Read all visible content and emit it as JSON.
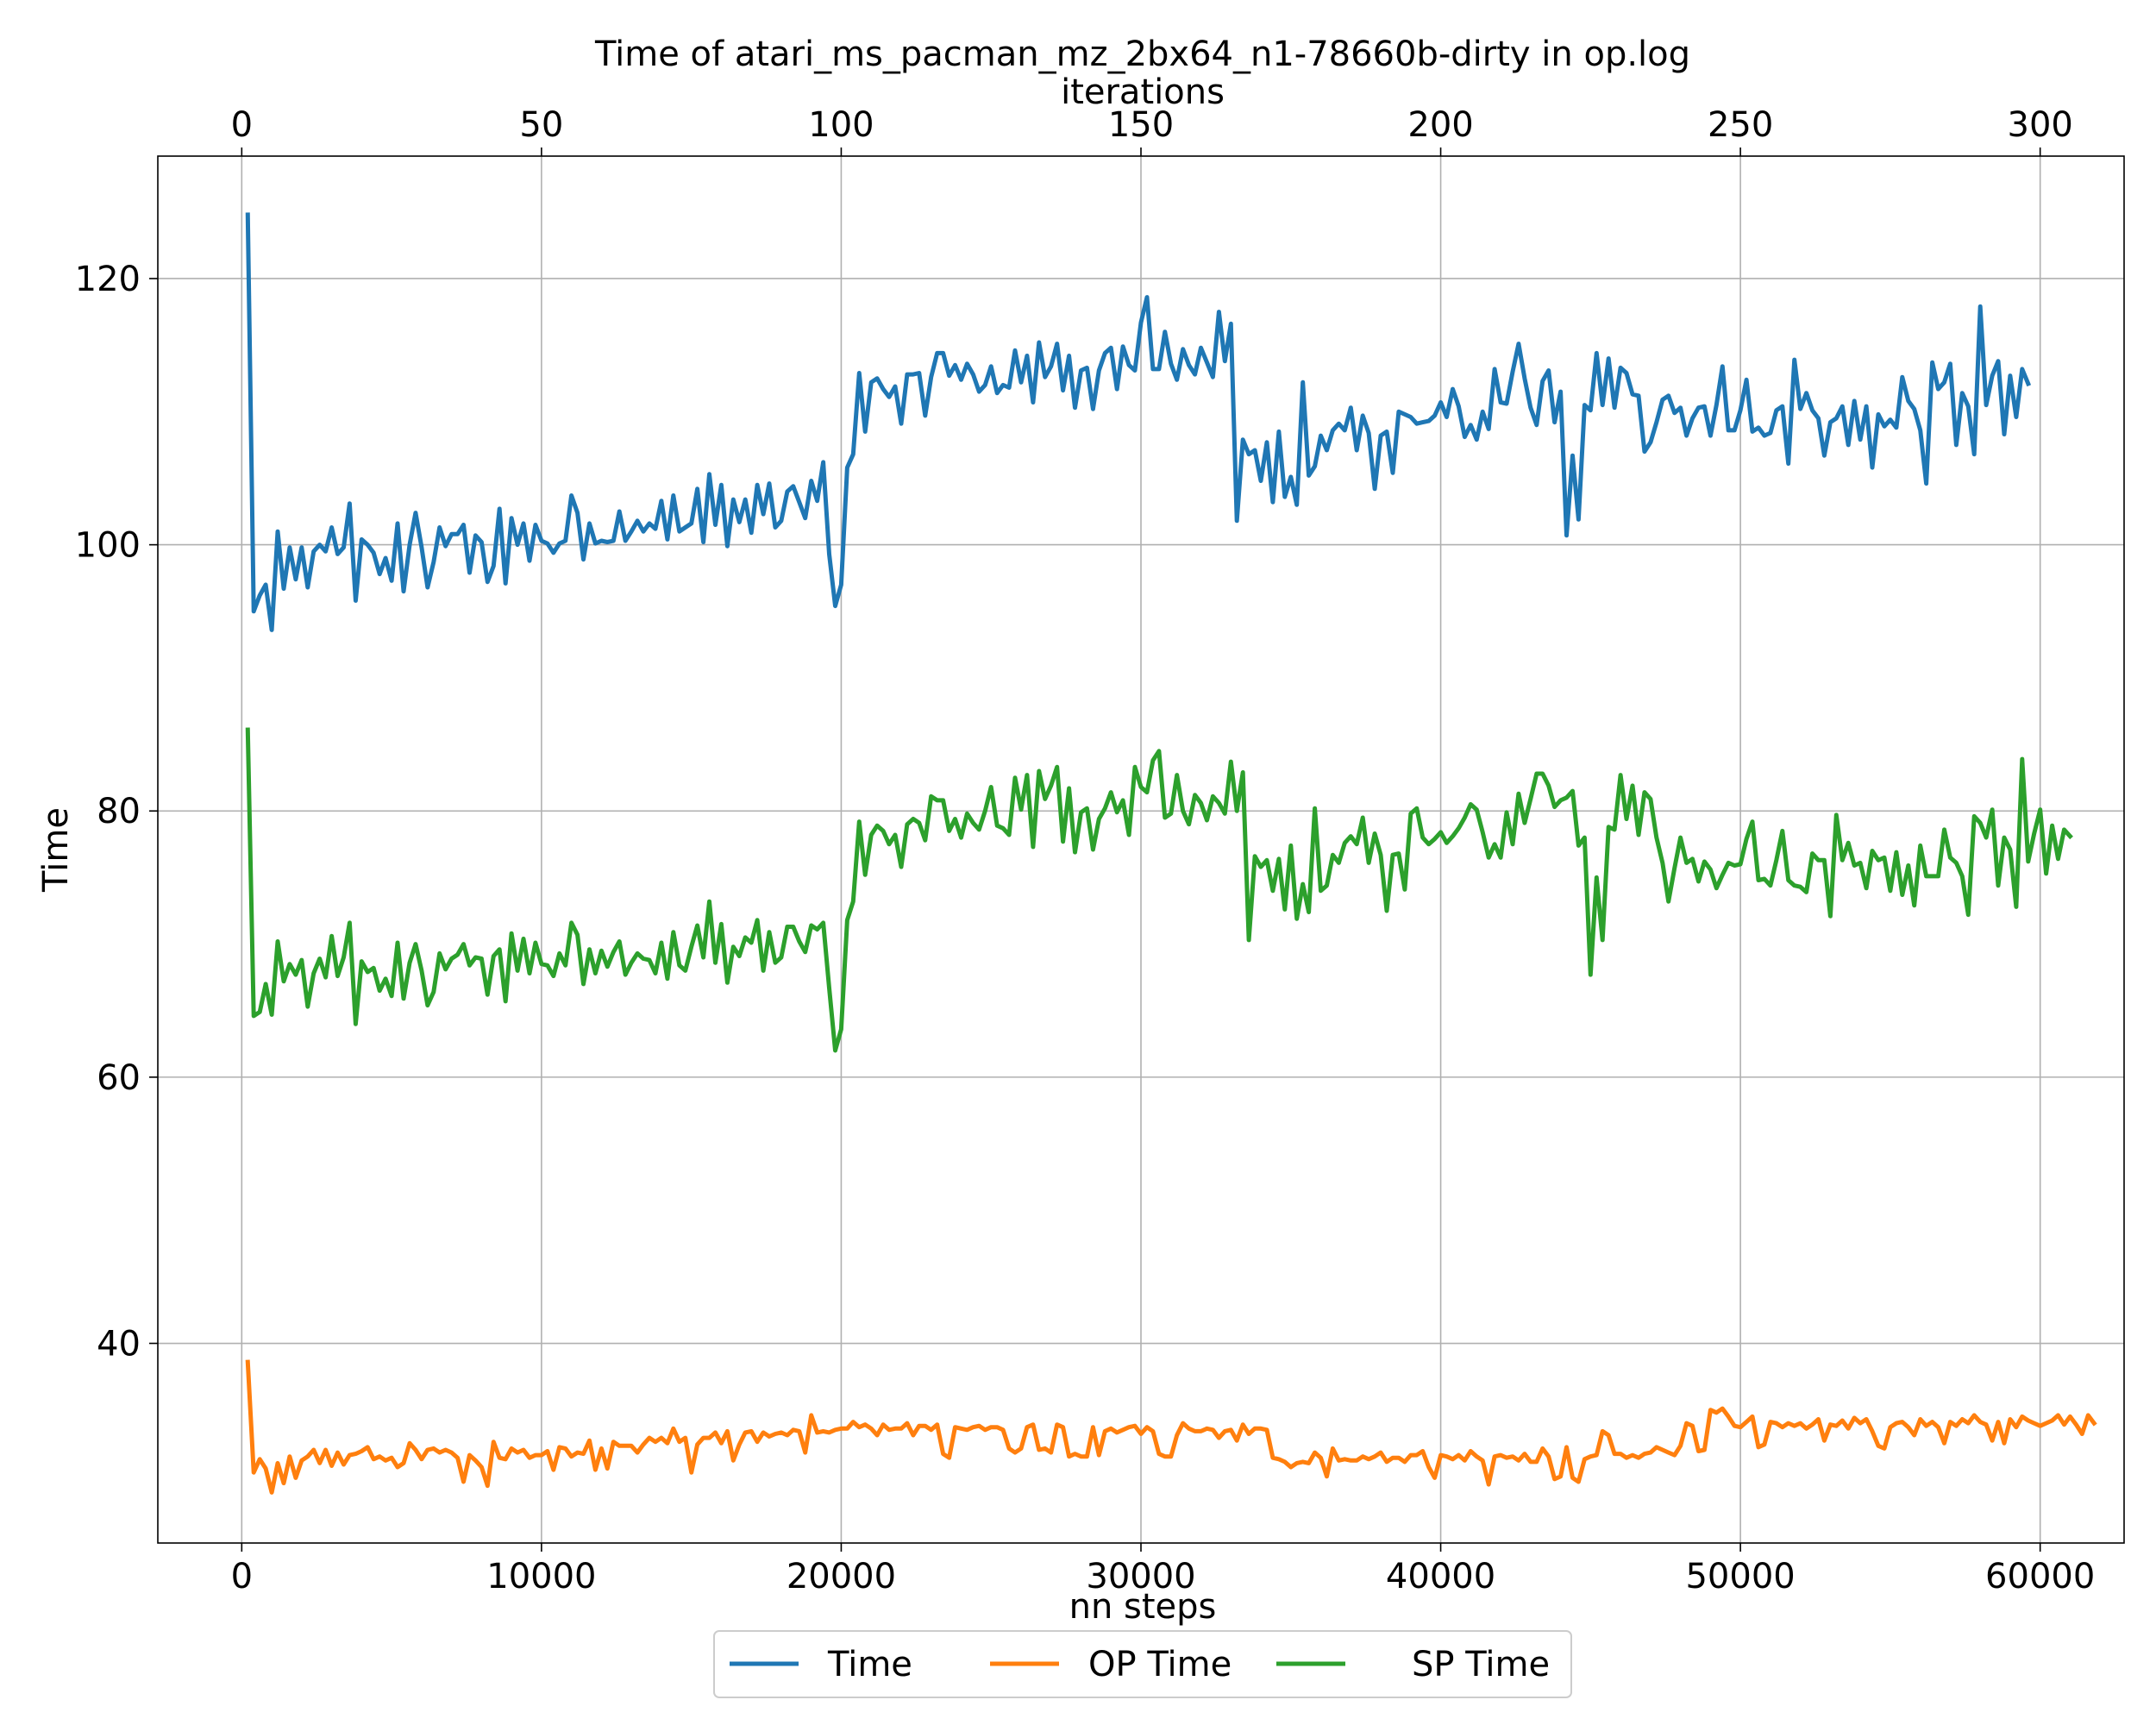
{
  "chart_data": {
    "type": "line",
    "title": "Time of atari_ms_pacman_mz_2bx64_n1-78660b-dirty in op.log",
    "xlabel": "nn steps",
    "x2label": "iterations",
    "ylabel": "Time",
    "xlim": [
      -2800,
      62800
    ],
    "x2lim": [
      -14,
      314
    ],
    "ylim": [
      25.0,
      129.2
    ],
    "xticks": [
      0,
      10000,
      20000,
      30000,
      40000,
      50000,
      60000
    ],
    "xtick_labels": [
      "0",
      "10000",
      "20000",
      "30000",
      "40000",
      "50000",
      "60000"
    ],
    "x2ticks": [
      0,
      50,
      100,
      150,
      200,
      250,
      300
    ],
    "x2tick_labels": [
      "0",
      "50",
      "100",
      "150",
      "200",
      "250",
      "300"
    ],
    "yticks": [
      40,
      60,
      80,
      100,
      120
    ],
    "ytick_labels": [
      "40",
      "60",
      "80",
      "100",
      "120"
    ],
    "grid": true,
    "legend_position": "bottom-center",
    "x_start": 200,
    "x_step": 200,
    "series": [
      {
        "name": "Time",
        "color": "#1f77b4",
        "values": [
          124.8,
          95.0,
          96.2,
          97.0,
          93.6,
          101.0,
          96.7,
          99.8,
          97.4,
          99.8,
          96.8,
          99.5,
          100.0,
          99.5,
          101.3,
          99.3,
          99.8,
          103.1,
          95.8,
          100.4,
          100.0,
          99.4,
          97.8,
          99.0,
          97.3,
          101.6,
          96.5,
          100.0,
          102.4,
          99.8,
          96.8,
          98.7,
          101.3,
          99.9,
          100.8,
          100.8,
          101.5,
          97.9,
          100.7,
          100.2,
          97.2,
          98.4,
          102.7,
          97.1,
          102.0,
          100.0,
          101.6,
          98.8,
          101.5,
          100.3,
          100.1,
          99.4,
          100.1,
          100.3,
          103.7,
          102.4,
          98.9,
          101.6,
          100.1,
          100.3,
          100.2,
          100.3,
          102.5,
          100.3,
          101.0,
          101.8,
          101.0,
          101.6,
          101.2,
          103.3,
          100.4,
          103.7,
          101.0,
          101.3,
          101.6,
          104.2,
          100.2,
          105.3,
          101.5,
          104.5,
          99.9,
          103.4,
          101.7,
          103.4,
          100.9,
          104.5,
          102.3,
          104.6,
          101.3,
          101.8,
          104.0,
          104.4,
          103.2,
          102.0,
          104.8,
          103.3,
          106.2,
          99.3,
          95.4,
          97.0,
          105.8,
          106.8,
          112.9,
          108.5,
          112.2,
          112.5,
          111.7,
          111.1,
          111.9,
          109.1,
          112.8,
          112.8,
          112.9,
          109.7,
          112.6,
          114.4,
          114.4,
          112.7,
          113.5,
          112.4,
          113.6,
          112.8,
          111.5,
          112.0,
          113.4,
          111.4,
          112.0,
          111.8,
          114.6,
          112.2,
          114.2,
          110.7,
          115.2,
          112.6,
          113.4,
          115.1,
          111.6,
          114.2,
          110.3,
          113.1,
          113.3,
          110.2,
          113.1,
          114.4,
          114.8,
          111.7,
          114.9,
          113.5,
          113.1,
          116.7,
          118.6,
          113.2,
          113.2,
          116.0,
          113.6,
          112.4,
          114.7,
          113.5,
          112.8,
          114.8,
          113.7,
          112.6,
          117.5,
          113.8,
          116.6,
          101.8,
          107.9,
          106.8,
          107.1,
          104.8,
          107.7,
          103.2,
          108.5,
          103.6,
          105.1,
          103.0,
          112.2,
          105.2,
          105.9,
          108.2,
          107.1,
          108.6,
          109.1,
          108.6,
          110.3,
          107.1,
          109.7,
          108.4,
          104.2,
          108.2,
          108.5,
          105.4,
          110.0,
          109.8,
          109.6,
          109.1,
          109.2,
          109.3,
          109.7,
          110.7,
          109.6,
          111.7,
          110.4,
          108.1,
          109.0,
          107.9,
          110.0,
          108.7,
          113.2,
          110.7,
          110.6,
          113.0,
          115.1,
          112.5,
          110.3,
          109.0,
          112.3,
          113.1,
          109.2,
          111.5,
          100.7,
          106.7,
          101.9,
          110.5,
          110.1,
          114.4,
          110.5,
          114.0,
          110.3,
          113.3,
          112.9,
          111.3,
          111.2,
          107.0,
          107.7,
          109.2,
          110.9,
          111.2,
          109.9,
          110.3,
          108.2,
          109.5,
          110.3,
          110.4,
          108.2,
          110.5,
          113.4,
          108.6,
          108.6,
          110.1,
          112.4,
          108.5,
          108.8,
          108.2,
          108.4,
          110.1,
          110.4,
          106.1,
          113.9,
          110.2,
          111.4,
          110.1,
          109.5,
          106.7,
          109.2,
          109.5,
          110.4,
          107.5,
          110.8,
          107.9,
          110.4,
          105.8,
          109.8,
          108.9,
          109.4,
          108.8,
          112.6,
          110.8,
          110.2,
          108.6,
          104.6,
          113.7,
          111.7,
          112.2,
          113.6,
          107.5,
          111.4,
          110.4,
          106.8,
          117.9,
          110.5,
          112.7,
          113.8,
          108.3,
          112.7,
          109.6,
          113.2,
          112.1
        ]
      },
      {
        "name": "OP Time",
        "color": "#ff7f0e",
        "values": [
          38.6,
          30.3,
          31.3,
          30.6,
          28.8,
          31.0,
          29.5,
          31.5,
          29.9,
          31.2,
          31.5,
          32.0,
          31.0,
          32.0,
          30.8,
          31.8,
          30.9,
          31.6,
          31.7,
          31.9,
          32.2,
          31.3,
          31.5,
          31.2,
          31.4,
          30.7,
          31.0,
          32.5,
          32.0,
          31.3,
          32.0,
          32.1,
          31.8,
          32.0,
          31.8,
          31.4,
          29.6,
          31.6,
          31.2,
          30.7,
          29.3,
          32.6,
          31.4,
          31.3,
          32.1,
          31.8,
          32.0,
          31.4,
          31.6,
          31.6,
          31.9,
          30.5,
          32.2,
          32.1,
          31.5,
          31.8,
          31.7,
          32.7,
          30.5,
          32.1,
          30.6,
          32.6,
          32.3,
          32.3,
          32.3,
          31.8,
          32.4,
          32.9,
          32.6,
          32.9,
          32.5,
          33.6,
          32.6,
          32.9,
          30.3,
          32.4,
          32.9,
          32.9,
          33.3,
          32.5,
          33.4,
          31.2,
          32.4,
          33.3,
          33.4,
          32.6,
          33.3,
          33.0,
          33.2,
          33.3,
          33.1,
          33.5,
          33.4,
          31.8,
          34.6,
          33.3,
          33.4,
          33.3,
          33.5,
          33.6,
          33.6,
          34.1,
          33.7,
          33.9,
          33.6,
          33.1,
          33.9,
          33.5,
          33.6,
          33.6,
          34.0,
          33.1,
          33.8,
          33.8,
          33.5,
          33.9,
          31.7,
          31.4,
          33.7,
          33.6,
          33.5,
          33.7,
          33.8,
          33.5,
          33.7,
          33.7,
          33.5,
          32.1,
          31.8,
          32.1,
          33.7,
          33.9,
          32.0,
          32.1,
          31.8,
          33.9,
          33.7,
          31.5,
          31.7,
          31.5,
          31.5,
          33.7,
          31.6,
          33.4,
          33.6,
          33.3,
          33.5,
          33.7,
          33.8,
          33.2,
          33.7,
          33.4,
          31.7,
          31.5,
          31.5,
          33.1,
          34.0,
          33.6,
          33.4,
          33.4,
          33.6,
          33.5,
          32.9,
          33.4,
          33.5,
          32.7,
          33.9,
          33.2,
          33.6,
          33.6,
          33.5,
          31.4,
          31.3,
          31.1,
          30.7,
          31.0,
          31.1,
          31.0,
          31.8,
          31.4,
          30.0,
          32.1,
          31.2,
          31.3,
          31.2,
          31.2,
          31.5,
          31.3,
          31.5,
          31.8,
          31.1,
          31.4,
          31.4,
          31.1,
          31.6,
          31.6,
          31.9,
          30.7,
          29.9,
          31.6,
          31.5,
          31.3,
          31.6,
          31.2,
          31.9,
          31.5,
          31.2,
          29.4,
          31.5,
          31.6,
          31.4,
          31.5,
          31.2,
          31.7,
          31.1,
          31.1,
          32.1,
          31.5,
          29.8,
          30.0,
          32.2,
          29.9,
          29.6,
          31.3,
          31.5,
          31.6,
          33.4,
          33.1,
          31.7,
          31.7,
          31.4,
          31.6,
          31.4,
          31.7,
          31.8,
          32.2,
          32.0,
          31.8,
          31.6,
          32.3,
          34.0,
          33.8,
          31.9,
          32.0,
          35.0,
          34.8,
          35.1,
          34.5,
          33.8,
          33.7,
          34.1,
          34.5,
          32.2,
          32.4,
          34.1,
          34.0,
          33.7,
          34.0,
          33.8,
          34.0,
          33.6,
          33.9,
          34.3,
          32.7,
          33.9,
          33.8,
          34.2,
          33.6,
          34.4,
          34.0,
          34.3,
          33.4,
          32.3,
          32.1,
          33.7,
          34.0,
          34.1,
          33.7,
          33.1,
          34.3,
          33.8,
          34.1,
          33.7,
          32.5,
          34.1,
          33.8,
          34.3,
          34.0,
          34.6,
          34.1,
          33.9,
          32.7,
          34.1,
          32.5,
          34.3,
          33.7,
          34.5,
          34.2,
          34.0,
          33.8,
          34.0,
          34.2,
          34.6,
          33.9,
          34.5,
          33.9,
          33.2,
          34.6,
          34.0
        ]
      },
      {
        "name": "SP Time",
        "color": "#2ca02c",
        "values": [
          86.1,
          64.6,
          64.9,
          67.0,
          64.7,
          70.2,
          67.2,
          68.5,
          67.7,
          68.8,
          65.3,
          67.8,
          68.9,
          67.5,
          70.6,
          67.6,
          69.0,
          71.6,
          64.0,
          68.7,
          67.9,
          68.2,
          66.5,
          67.4,
          66.1,
          70.1,
          65.9,
          68.6,
          70.0,
          68.0,
          65.4,
          66.4,
          69.3,
          68.1,
          68.9,
          69.2,
          70.0,
          68.4,
          69.0,
          68.9,
          66.2,
          69.1,
          69.6,
          65.7,
          70.8,
          68.0,
          70.4,
          67.8,
          70.1,
          68.5,
          68.4,
          67.6,
          69.3,
          68.4,
          71.6,
          70.7,
          67.0,
          69.6,
          67.8,
          69.5,
          68.3,
          69.4,
          70.2,
          67.7,
          68.6,
          69.3,
          68.9,
          68.8,
          67.8,
          70.1,
          67.4,
          70.9,
          68.4,
          68.0,
          69.8,
          71.4,
          69.0,
          73.2,
          68.6,
          71.5,
          67.1,
          69.8,
          69.1,
          70.5,
          70.1,
          71.8,
          68.0,
          70.9,
          68.6,
          69.0,
          71.3,
          71.3,
          70.2,
          69.4,
          71.4,
          71.1,
          71.6,
          66.7,
          62.0,
          63.6,
          71.8,
          73.2,
          79.2,
          75.2,
          78.2,
          78.9,
          78.5,
          77.5,
          78.2,
          75.8,
          79.0,
          79.4,
          79.1,
          77.8,
          81.1,
          80.8,
          80.8,
          78.5,
          79.4,
          78.0,
          79.8,
          79.1,
          78.6,
          80.0,
          81.8,
          78.9,
          78.7,
          78.2,
          82.5,
          80.1,
          82.7,
          77.3,
          83.0,
          80.9,
          81.9,
          83.3,
          77.7,
          81.7,
          76.9,
          79.9,
          80.2,
          77.1,
          79.4,
          80.2,
          81.4,
          79.9,
          80.8,
          78.2,
          83.3,
          81.8,
          81.4,
          83.8,
          84.5,
          79.5,
          79.8,
          82.7,
          80.0,
          79.0,
          81.2,
          80.6,
          79.3,
          81.1,
          80.6,
          79.8,
          83.7,
          80.0,
          82.9,
          70.3,
          76.6,
          75.8,
          76.3,
          74.0,
          76.4,
          72.6,
          77.4,
          71.9,
          74.5,
          72.4,
          80.2,
          74.0,
          74.4,
          76.7,
          76.1,
          77.6,
          78.1,
          77.5,
          79.5,
          76.1,
          78.3,
          76.7,
          72.5,
          76.7,
          76.8,
          74.1,
          79.8,
          80.2,
          78.0,
          77.5,
          77.9,
          78.4,
          77.6,
          78.1,
          78.7,
          79.5,
          80.5,
          80.1,
          78.4,
          76.5,
          77.5,
          76.5,
          79.9,
          77.5,
          81.3,
          79.1,
          80.9,
          82.8,
          82.8,
          81.9,
          80.3,
          80.8,
          81.0,
          81.5,
          77.4,
          78.0,
          67.7,
          75.0,
          70.3,
          78.8,
          78.6,
          82.7,
          79.4,
          81.9,
          78.2,
          81.4,
          80.9,
          78.0,
          76.1,
          73.2,
          75.7,
          78.0,
          76.1,
          76.4,
          74.7,
          76.2,
          75.6,
          74.2,
          75.2,
          76.1,
          75.9,
          76.0,
          77.9,
          79.2,
          74.8,
          74.9,
          74.4,
          76.3,
          78.5,
          74.8,
          74.4,
          74.3,
          73.9,
          76.8,
          76.3,
          76.3,
          72.1,
          79.7,
          76.3,
          77.6,
          75.9,
          76.1,
          74.2,
          77.0,
          76.3,
          76.5,
          74.0,
          76.9,
          73.7,
          75.9,
          72.9,
          77.4,
          75.1,
          75.1,
          75.1,
          78.6,
          76.5,
          76.1,
          75.1,
          72.2,
          79.6,
          79.1,
          78.0,
          80.1,
          74.4,
          78.0,
          77.1,
          72.8,
          83.9,
          76.2,
          78.3,
          80.1,
          75.3,
          78.9,
          76.4,
          78.6,
          78.1
        ]
      }
    ]
  }
}
